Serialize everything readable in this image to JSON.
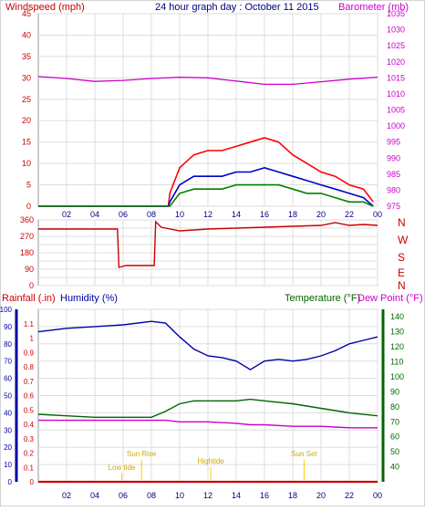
{
  "header": {
    "left_label": "Windspeed (mph)",
    "title": "24 hour graph day : October 11 2015",
    "right_label": "Barometer (mb)"
  },
  "colors": {
    "windspeed": "#ff0000",
    "windavg": "#0000cc",
    "windmin": "#008000",
    "barometer": "#cc00cc",
    "direction": "#cc0000",
    "rain": "#cc0000",
    "humidity": "#0000aa",
    "temperature": "#006600",
    "dewpoint": "#cc00cc",
    "tide": "#ffcc00",
    "grid": "#dddddd"
  },
  "bottom_labels": {
    "rainfall": "Rainfall (.in)",
    "humidity": "Humidity (%)",
    "temperature": "Temperature (°F)",
    "dewpoint": "Dew Point (°F)"
  },
  "compass_labels": [
    "N",
    "W",
    "S",
    "E",
    "N"
  ],
  "chart_data": [
    {
      "type": "line",
      "panel": "wind-barometer",
      "x_ticks": [
        "02",
        "04",
        "06",
        "08",
        "10",
        "12",
        "14",
        "16",
        "18",
        "20",
        "22",
        "00"
      ],
      "left_axis": {
        "label": "Windspeed (mph)",
        "ylim": [
          0,
          45
        ],
        "ticks": [
          0,
          5,
          10,
          15,
          20,
          25,
          30,
          35,
          40,
          45
        ]
      },
      "right_axis": {
        "label": "Barometer (mb)",
        "ylim": [
          975,
          1035
        ],
        "ticks": [
          975,
          980,
          985,
          990,
          995,
          1000,
          1005,
          1010,
          1015,
          1020,
          1025,
          1030,
          1035
        ]
      },
      "series": [
        {
          "name": "Windspeed (mph)",
          "axis": "left",
          "x": [
            0,
            9.2,
            9.3,
            10,
            11,
            12,
            13,
            14,
            15,
            16,
            17,
            18,
            19,
            20,
            21,
            22,
            23,
            23.7
          ],
          "values": [
            0,
            0,
            3,
            9,
            12,
            13,
            13,
            14,
            15,
            16,
            15,
            12,
            10,
            8,
            7,
            5,
            4,
            1
          ]
        },
        {
          "axis": "left",
          "x": [
            0,
            9.2,
            9.3,
            10,
            11,
            12,
            13,
            14,
            15,
            16,
            17,
            18,
            19,
            20,
            21,
            22,
            23,
            23.7
          ],
          "values": [
            0,
            0,
            1,
            5,
            7,
            7,
            7,
            8,
            8,
            9,
            8,
            7,
            6,
            5,
            4,
            3,
            2,
            0
          ]
        },
        {
          "axis": "left",
          "x": [
            0,
            9.2,
            9.3,
            10,
            11,
            12,
            13,
            14,
            15,
            16,
            17,
            18,
            19,
            20,
            21,
            22,
            23,
            23.7
          ],
          "values": [
            0,
            0,
            0,
            3,
            4,
            4,
            4,
            5,
            5,
            5,
            5,
            4,
            3,
            3,
            2,
            1,
            1,
            0
          ]
        },
        {
          "name": "Barometer (mb)",
          "axis": "right",
          "x": [
            0,
            2,
            4,
            6,
            8,
            10,
            12,
            14,
            16,
            18,
            20,
            22,
            24
          ],
          "values": [
            1015.4,
            1014.8,
            1013.9,
            1014.2,
            1014.8,
            1015.2,
            1015.0,
            1014.0,
            1013.0,
            1013.0,
            1013.8,
            1014.6,
            1015.2
          ]
        }
      ]
    },
    {
      "type": "line",
      "panel": "wind-direction",
      "x_ticks": [
        "02",
        "04",
        "06",
        "08",
        "10",
        "12",
        "14",
        "16",
        "18",
        "20",
        "22",
        "00"
      ],
      "left_axis": {
        "ylim": [
          0,
          360
        ],
        "ticks": [
          0,
          45,
          90,
          135,
          180,
          225,
          270,
          315,
          360
        ]
      },
      "series": [
        {
          "name": "Direction",
          "x": [
            0,
            5.6,
            5.7,
            6.2,
            8.2,
            8.3,
            8.7,
            10,
            12,
            14,
            16,
            18,
            20,
            21,
            22,
            23,
            24
          ],
          "values": [
            310,
            310,
            100,
            110,
            110,
            350,
            320,
            300,
            310,
            315,
            320,
            325,
            330,
            345,
            330,
            335,
            330
          ]
        }
      ]
    },
    {
      "type": "line",
      "panel": "rain-humidity-temperature",
      "x_ticks": [
        "02",
        "04",
        "06",
        "08",
        "10",
        "12",
        "14",
        "16",
        "18",
        "20",
        "22",
        "00"
      ],
      "left_axis": {
        "label": "Humidity (%)",
        "ylim": [
          0,
          100
        ],
        "ticks": [
          0,
          10,
          20,
          30,
          40,
          50,
          60,
          70,
          80,
          90,
          100
        ]
      },
      "rain_axis": {
        "label": "Rainfall (.in)",
        "ylim": [
          0,
          1.2
        ],
        "ticks": [
          0,
          0.1,
          0.2,
          0.3,
          0.4,
          0.5,
          0.6,
          0.7,
          0.8,
          0.9,
          1,
          1.1
        ]
      },
      "right_axis": {
        "label": "Temperature (°F)",
        "ylim": [
          30,
          145
        ],
        "ticks": [
          40,
          50,
          60,
          70,
          80,
          90,
          100,
          110,
          120,
          130,
          140
        ]
      },
      "annotations": [
        {
          "text": "Sun Rise",
          "x": 7.3
        },
        {
          "text": "Low tide",
          "x": 5.9
        },
        {
          "text": "Hightide",
          "x": 12.2
        },
        {
          "text": "Sun Set",
          "x": 18.8
        }
      ],
      "series": [
        {
          "name": "Humidity (%)",
          "axis": "left",
          "x": [
            0,
            2,
            4,
            6,
            8,
            9,
            10,
            11,
            12,
            13,
            14,
            15,
            16,
            17,
            18,
            19,
            20,
            21,
            22,
            23,
            24
          ],
          "values": [
            87,
            89,
            90,
            91,
            93,
            92,
            84,
            77,
            73,
            72,
            70,
            65,
            70,
            71,
            70,
            71,
            73,
            76,
            80,
            82,
            84
          ]
        },
        {
          "name": "Temperature (°F)",
          "axis": "right",
          "x": [
            0,
            2,
            4,
            6,
            8,
            9,
            10,
            11,
            12,
            14,
            15,
            16,
            18,
            20,
            22,
            24
          ],
          "values": [
            75,
            74,
            73,
            73,
            73,
            77,
            82,
            84,
            84,
            84,
            85,
            84,
            82,
            79,
            76,
            74
          ]
        },
        {
          "name": "Dew Point (°F)",
          "axis": "right",
          "x": [
            0,
            2,
            4,
            6,
            8,
            9,
            10,
            11,
            12,
            14,
            15,
            16,
            18,
            20,
            22,
            24
          ],
          "values": [
            71,
            71,
            71,
            71,
            71,
            71,
            70,
            70,
            70,
            69,
            68,
            68,
            67,
            67,
            66,
            66
          ]
        },
        {
          "name": "Rainfall (.in)",
          "axis": "rain",
          "x": [
            0,
            24
          ],
          "values": [
            0,
            0
          ]
        }
      ]
    }
  ]
}
